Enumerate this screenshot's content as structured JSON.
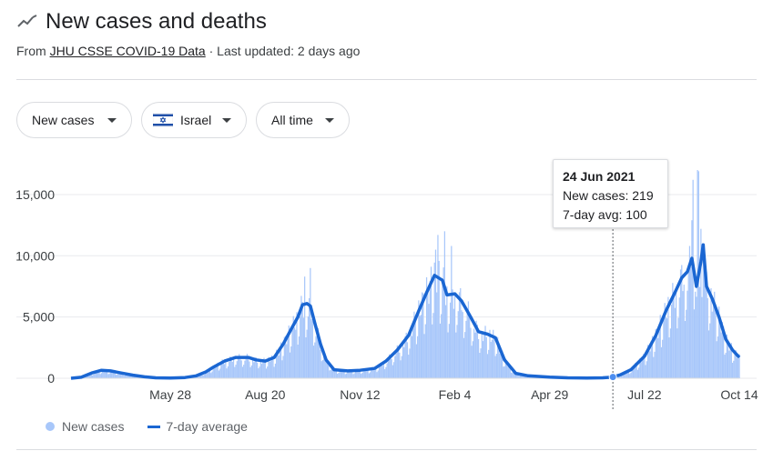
{
  "header": {
    "title": "New cases and deaths",
    "source_prefix": "From ",
    "source_link": "JHU CSSE COVID-19 Data",
    "source_suffix": " · Last updated: 2 days ago"
  },
  "filters": {
    "metric": "New cases",
    "country": "Israel",
    "range": "All time"
  },
  "tooltip": {
    "date": "24 Jun 2021",
    "cases_line": "New cases: 219",
    "avg_line": "7-day avg: 100"
  },
  "legend": {
    "bars": "New cases",
    "line": "7-day average"
  },
  "colors": {
    "bars": "#a8c7fa",
    "line": "#1a66d2",
    "grid": "#e8eaed"
  },
  "chart_data": {
    "type": "bar",
    "ylim": [
      0,
      17000
    ],
    "yticks": [
      0,
      5000,
      10000,
      15000
    ],
    "ytick_labels": [
      "0",
      "5,000",
      "10,000",
      "15,000"
    ],
    "xtick_labels": [
      "May 28",
      "Aug 20",
      "Nov 12",
      "Feb 4",
      "Apr 29",
      "Jul 22",
      "Oct 14"
    ],
    "xtick_dates": [
      "2020-05-28",
      "2020-08-20",
      "2020-11-12",
      "2021-02-04",
      "2021-04-29",
      "2021-07-22",
      "2021-10-14"
    ],
    "x_range": [
      "2020-03-01",
      "2021-10-14"
    ],
    "highlight": {
      "date": "2021-06-24",
      "new_cases": 219,
      "avg": 100
    },
    "series": [
      {
        "name": "7-day average",
        "kind": "line",
        "points": [
          [
            "2020-03-01",
            0
          ],
          [
            "2020-03-10",
            80
          ],
          [
            "2020-03-20",
            450
          ],
          [
            "2020-03-28",
            650
          ],
          [
            "2020-04-05",
            600
          ],
          [
            "2020-04-15",
            420
          ],
          [
            "2020-04-25",
            250
          ],
          [
            "2020-05-05",
            120
          ],
          [
            "2020-05-15",
            40
          ],
          [
            "2020-05-28",
            20
          ],
          [
            "2020-06-10",
            60
          ],
          [
            "2020-06-20",
            200
          ],
          [
            "2020-06-28",
            500
          ],
          [
            "2020-07-05",
            900
          ],
          [
            "2020-07-15",
            1400
          ],
          [
            "2020-07-25",
            1700
          ],
          [
            "2020-08-05",
            1700
          ],
          [
            "2020-08-12",
            1500
          ],
          [
            "2020-08-20",
            1400
          ],
          [
            "2020-08-28",
            1700
          ],
          [
            "2020-09-05",
            2800
          ],
          [
            "2020-09-12",
            4000
          ],
          [
            "2020-09-18",
            5000
          ],
          [
            "2020-09-22",
            6000
          ],
          [
            "2020-09-26",
            6100
          ],
          [
            "2020-09-29",
            5900
          ],
          [
            "2020-10-03",
            4500
          ],
          [
            "2020-10-08",
            2800
          ],
          [
            "2020-10-13",
            1500
          ],
          [
            "2020-10-20",
            700
          ],
          [
            "2020-11-01",
            600
          ],
          [
            "2020-11-12",
            650
          ],
          [
            "2020-11-25",
            800
          ],
          [
            "2020-12-05",
            1400
          ],
          [
            "2020-12-15",
            2300
          ],
          [
            "2020-12-25",
            3500
          ],
          [
            "2021-01-03",
            5500
          ],
          [
            "2021-01-10",
            7000
          ],
          [
            "2021-01-17",
            8400
          ],
          [
            "2021-01-24",
            8000
          ],
          [
            "2021-01-28",
            6800
          ],
          [
            "2021-02-04",
            6900
          ],
          [
            "2021-02-10",
            6300
          ],
          [
            "2021-02-18",
            5000
          ],
          [
            "2021-02-25",
            3800
          ],
          [
            "2021-03-05",
            3600
          ],
          [
            "2021-03-12",
            3300
          ],
          [
            "2021-03-20",
            1500
          ],
          [
            "2021-03-30",
            400
          ],
          [
            "2021-04-10",
            200
          ],
          [
            "2021-04-29",
            90
          ],
          [
            "2021-05-15",
            40
          ],
          [
            "2021-06-01",
            20
          ],
          [
            "2021-06-15",
            40
          ],
          [
            "2021-06-24",
            100
          ],
          [
            "2021-07-01",
            300
          ],
          [
            "2021-07-10",
            700
          ],
          [
            "2021-07-22",
            1800
          ],
          [
            "2021-08-01",
            3500
          ],
          [
            "2021-08-10",
            5500
          ],
          [
            "2021-08-18",
            7000
          ],
          [
            "2021-08-24",
            8200
          ],
          [
            "2021-08-29",
            8700
          ],
          [
            "2021-09-02",
            9800
          ],
          [
            "2021-09-06",
            7500
          ],
          [
            "2021-09-10",
            9500
          ],
          [
            "2021-09-12",
            10900
          ],
          [
            "2021-09-15",
            7500
          ],
          [
            "2021-09-20",
            6500
          ],
          [
            "2021-09-26",
            5000
          ],
          [
            "2021-10-02",
            3200
          ],
          [
            "2021-10-08",
            2300
          ],
          [
            "2021-10-14",
            1700
          ]
        ]
      }
    ],
    "bar_spikes": [
      [
        "2020-09-24",
        8300
      ],
      [
        "2020-09-29",
        9000
      ],
      [
        "2021-01-18",
        10500
      ],
      [
        "2021-01-20",
        11700
      ],
      [
        "2021-01-26",
        12000
      ],
      [
        "2021-02-01",
        10800
      ],
      [
        "2021-08-31",
        10800
      ],
      [
        "2021-09-02",
        12900
      ],
      [
        "2021-09-03",
        16200
      ],
      [
        "2021-09-07",
        17000
      ],
      [
        "2021-09-08",
        16900
      ],
      [
        "2021-09-10",
        12200
      ],
      [
        "2021-09-13",
        11000
      ]
    ]
  }
}
